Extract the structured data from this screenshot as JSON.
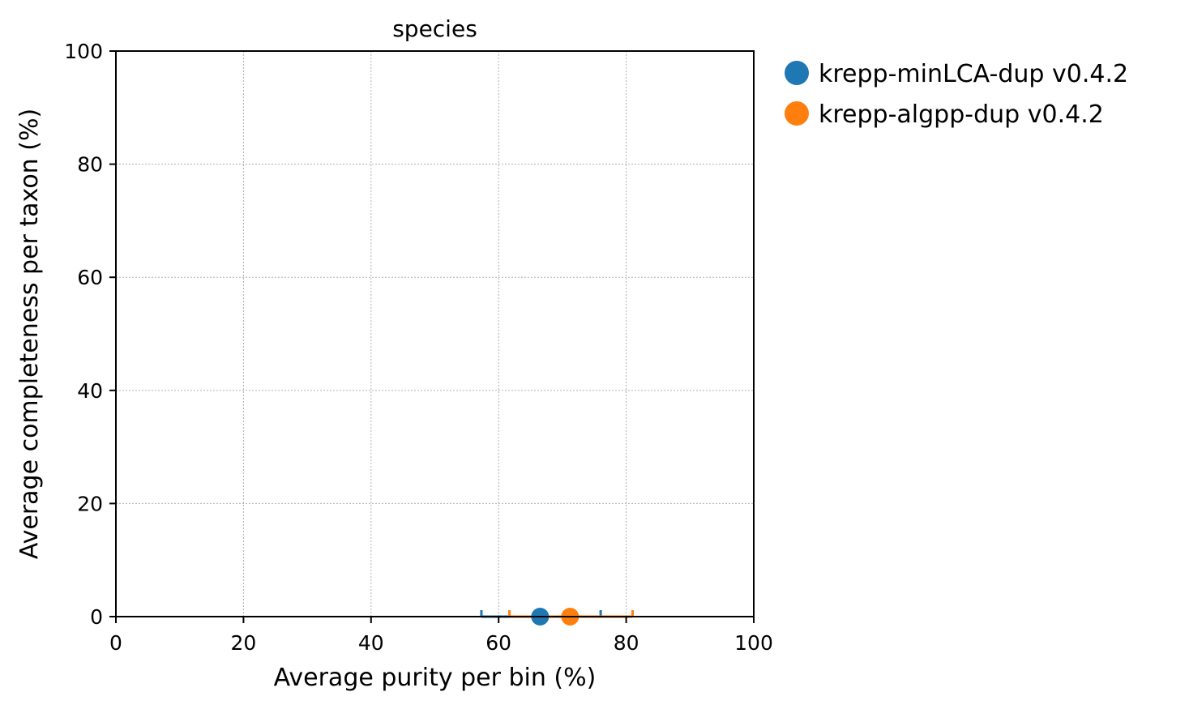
{
  "chart_data": {
    "type": "scatter",
    "title": "species",
    "xlabel": "Average purity per bin (%)",
    "ylabel": "Average completeness per taxon (%)",
    "xlim": [
      0,
      100
    ],
    "ylim": [
      0,
      100
    ],
    "xticks": [
      "0",
      "20",
      "40",
      "60",
      "80",
      "100"
    ],
    "yticks": [
      "0",
      "20",
      "40",
      "60",
      "80",
      "100"
    ],
    "grid": true,
    "legend_position": "outside-right-top",
    "series": [
      {
        "name": "krepp-minLCA-dup v0.4.2",
        "color": "#1f77b4",
        "x": 66.5,
        "y": 0.0,
        "x_error": [
          57.3,
          76.0
        ]
      },
      {
        "name": "krepp-algpp-dup v0.4.2",
        "color": "#ff7f0e",
        "x": 71.2,
        "y": 0.0,
        "x_error": [
          61.7,
          81.0
        ]
      }
    ]
  }
}
